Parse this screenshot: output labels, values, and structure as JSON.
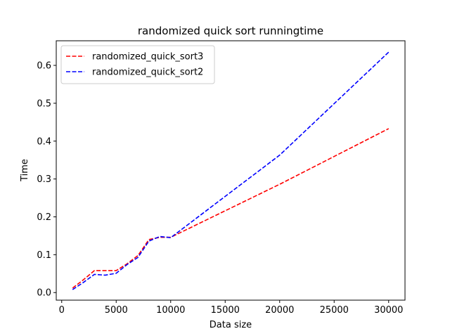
{
  "chart_data": {
    "type": "line",
    "title": "randomized quick sort runningtime",
    "xlabel": "Data size",
    "ylabel": "Time",
    "xlim": [
      -500,
      31500
    ],
    "ylim": [
      -0.02,
      0.665
    ],
    "xticks": [
      0,
      5000,
      10000,
      15000,
      20000,
      25000,
      30000
    ],
    "yticks": [
      0.0,
      0.1,
      0.2,
      0.3,
      0.4,
      0.5,
      0.6
    ],
    "xtick_labels": [
      "0",
      "5000",
      "10000",
      "15000",
      "20000",
      "25000",
      "30000"
    ],
    "ytick_labels": [
      "0.0",
      "0.1",
      "0.2",
      "0.3",
      "0.4",
      "0.5",
      "0.6"
    ],
    "grid": false,
    "legend_position": "top-left",
    "series": [
      {
        "name": "randomized_quick_sort3",
        "color": "#ff0000",
        "x": [
          1000,
          2000,
          3000,
          4000,
          5000,
          6000,
          7000,
          8000,
          9000,
          10000,
          20000,
          30000
        ],
        "y": [
          0.012,
          0.034,
          0.058,
          0.058,
          0.058,
          0.076,
          0.098,
          0.14,
          0.146,
          0.146,
          0.286,
          0.433
        ]
      },
      {
        "name": "randomized_quick_sort2",
        "color": "#0000ff",
        "x": [
          1000,
          2000,
          3000,
          4000,
          5000,
          6000,
          7000,
          8000,
          9000,
          10000,
          20000,
          30000
        ],
        "y": [
          0.008,
          0.027,
          0.048,
          0.046,
          0.051,
          0.074,
          0.093,
          0.136,
          0.148,
          0.145,
          0.363,
          0.635
        ]
      }
    ]
  }
}
